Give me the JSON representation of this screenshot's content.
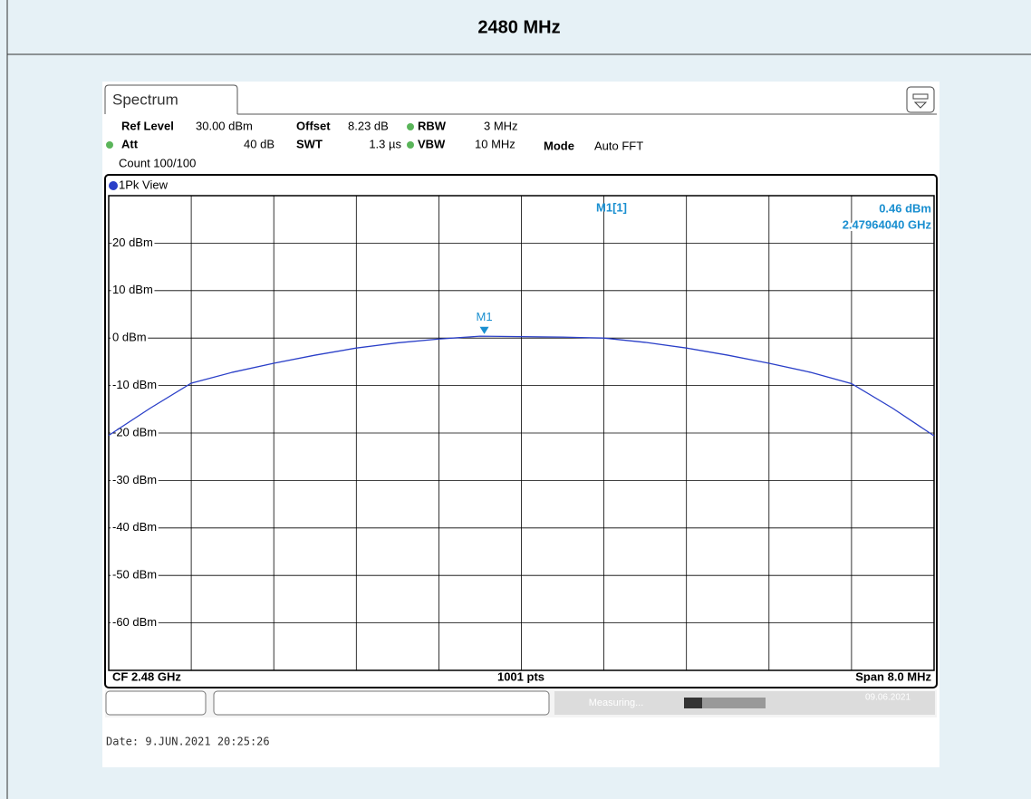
{
  "title": "2480 MHz",
  "tab": "Spectrum",
  "settings": {
    "ref_level_label": "Ref Level",
    "ref_level": "30.00 dBm",
    "offset_label": "Offset",
    "offset": "8.23 dB",
    "rbw_label": "RBW",
    "rbw": "3 MHz",
    "att_label": "Att",
    "att": "40 dB",
    "swt_label": "SWT",
    "swt": "1.3 µs",
    "vbw_label": "VBW",
    "vbw": "10 MHz",
    "mode_label": "Mode",
    "mode": "Auto FFT",
    "count": "Count 100/100"
  },
  "view": "1Pk View",
  "footer": {
    "center": "CF 2.48 GHz",
    "points": "1001 pts",
    "span": "Span 8.0 MHz"
  },
  "status": {
    "state": "Measuring...",
    "date": "09.06.2021"
  },
  "date_line": "Date: 9.JUN.2021  20:25:26",
  "chart_data": {
    "type": "line",
    "x": [
      2.476,
      2.4764,
      2.4768,
      2.4772,
      2.4776,
      2.478,
      2.4784,
      2.4788,
      2.4792,
      2.4796,
      2.48,
      2.4804,
      2.4808,
      2.4812,
      2.4816,
      2.482,
      2.4824,
      2.4828,
      2.4832,
      2.4836,
      2.484
    ],
    "series": [
      {
        "color": "#2a3fc8",
        "values": [
          -20.5,
          -14.8,
          -9.5,
          -7.2,
          -5.3,
          -3.6,
          -2.1,
          -1.0,
          -0.2,
          0.4,
          0.3,
          0.2,
          0.0,
          -0.9,
          -2.1,
          -3.6,
          -5.3,
          -7.2,
          -9.6,
          -14.8,
          -20.6
        ]
      }
    ],
    "xlim": [
      2.476,
      2.484
    ],
    "xticks": [
      2.476,
      2.4768,
      2.4776,
      2.4784,
      2.4792,
      2.48,
      2.4808,
      2.4816,
      2.4824,
      2.4832,
      2.484
    ],
    "ylim": [
      -70,
      30
    ],
    "yticks": [
      {
        "value": 20,
        "label": "20 dBm"
      },
      {
        "value": 10,
        "label": "10 dBm"
      },
      {
        "value": 0,
        "label": "0 dBm"
      },
      {
        "value": -10,
        "label": "-10 dBm"
      },
      {
        "value": -20,
        "label": "-20 dBm"
      },
      {
        "value": -30,
        "label": "-30 dBm"
      },
      {
        "value": -40,
        "label": "-40 dBm"
      },
      {
        "value": -50,
        "label": "-50 dBm"
      },
      {
        "value": -60,
        "label": "-60 dBm"
      }
    ],
    "grid": true,
    "marker": {
      "name": "M1",
      "readout": "M1[1]",
      "x": 2.4796404,
      "value": 0.46,
      "value_label": "0.46 dBm",
      "x_label": "2.47964040 GHz",
      "color": "#1a8fd0"
    }
  }
}
